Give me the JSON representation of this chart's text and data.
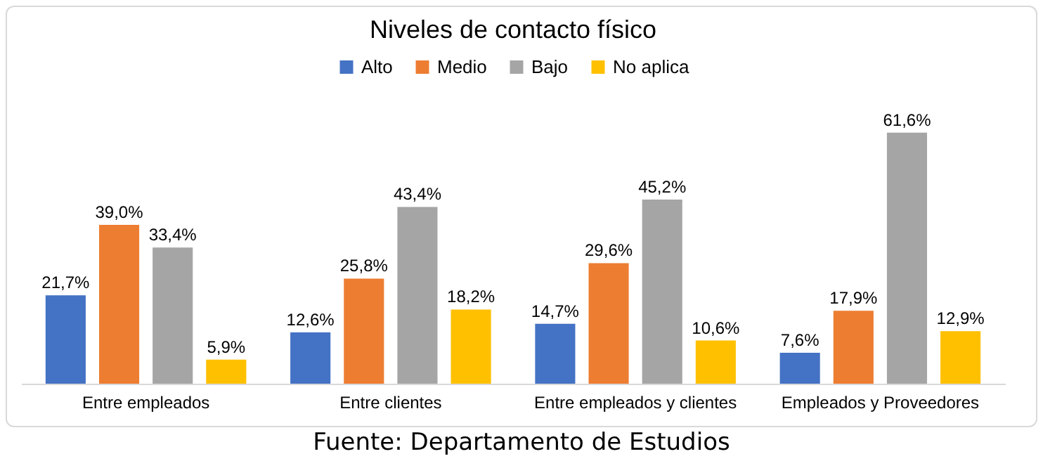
{
  "chart_data": {
    "type": "bar",
    "title": "Niveles de contacto físico",
    "categories": [
      "Entre empleados",
      "Entre clientes",
      "Entre empleados y clientes",
      "Empleados y Proveedores"
    ],
    "series": [
      {
        "name": "Alto",
        "color": "#4472c4",
        "values": [
          21.7,
          12.6,
          14.7,
          7.6
        ],
        "value_labels": [
          "21,7%",
          "12,6%",
          "14,7%",
          "7,6%"
        ]
      },
      {
        "name": "Medio",
        "color": "#ed7d31",
        "values": [
          39.0,
          25.8,
          29.6,
          17.9
        ],
        "value_labels": [
          "39,0%",
          "25,8%",
          "29,6%",
          "17,9%"
        ]
      },
      {
        "name": "Bajo",
        "color": "#a5a5a5",
        "values": [
          33.4,
          43.4,
          45.2,
          61.6
        ],
        "value_labels": [
          "33,4%",
          "43,4%",
          "45,2%",
          "61,6%"
        ]
      },
      {
        "name": "No aplica",
        "color": "#ffc000",
        "values": [
          5.9,
          18.2,
          10.6,
          12.9
        ],
        "value_labels": [
          "5,9%",
          "18,2%",
          "10,6%",
          "12,9%"
        ]
      }
    ],
    "legend": "top",
    "annotations": [
      "Fuente: Departamento de Estudios"
    ]
  }
}
